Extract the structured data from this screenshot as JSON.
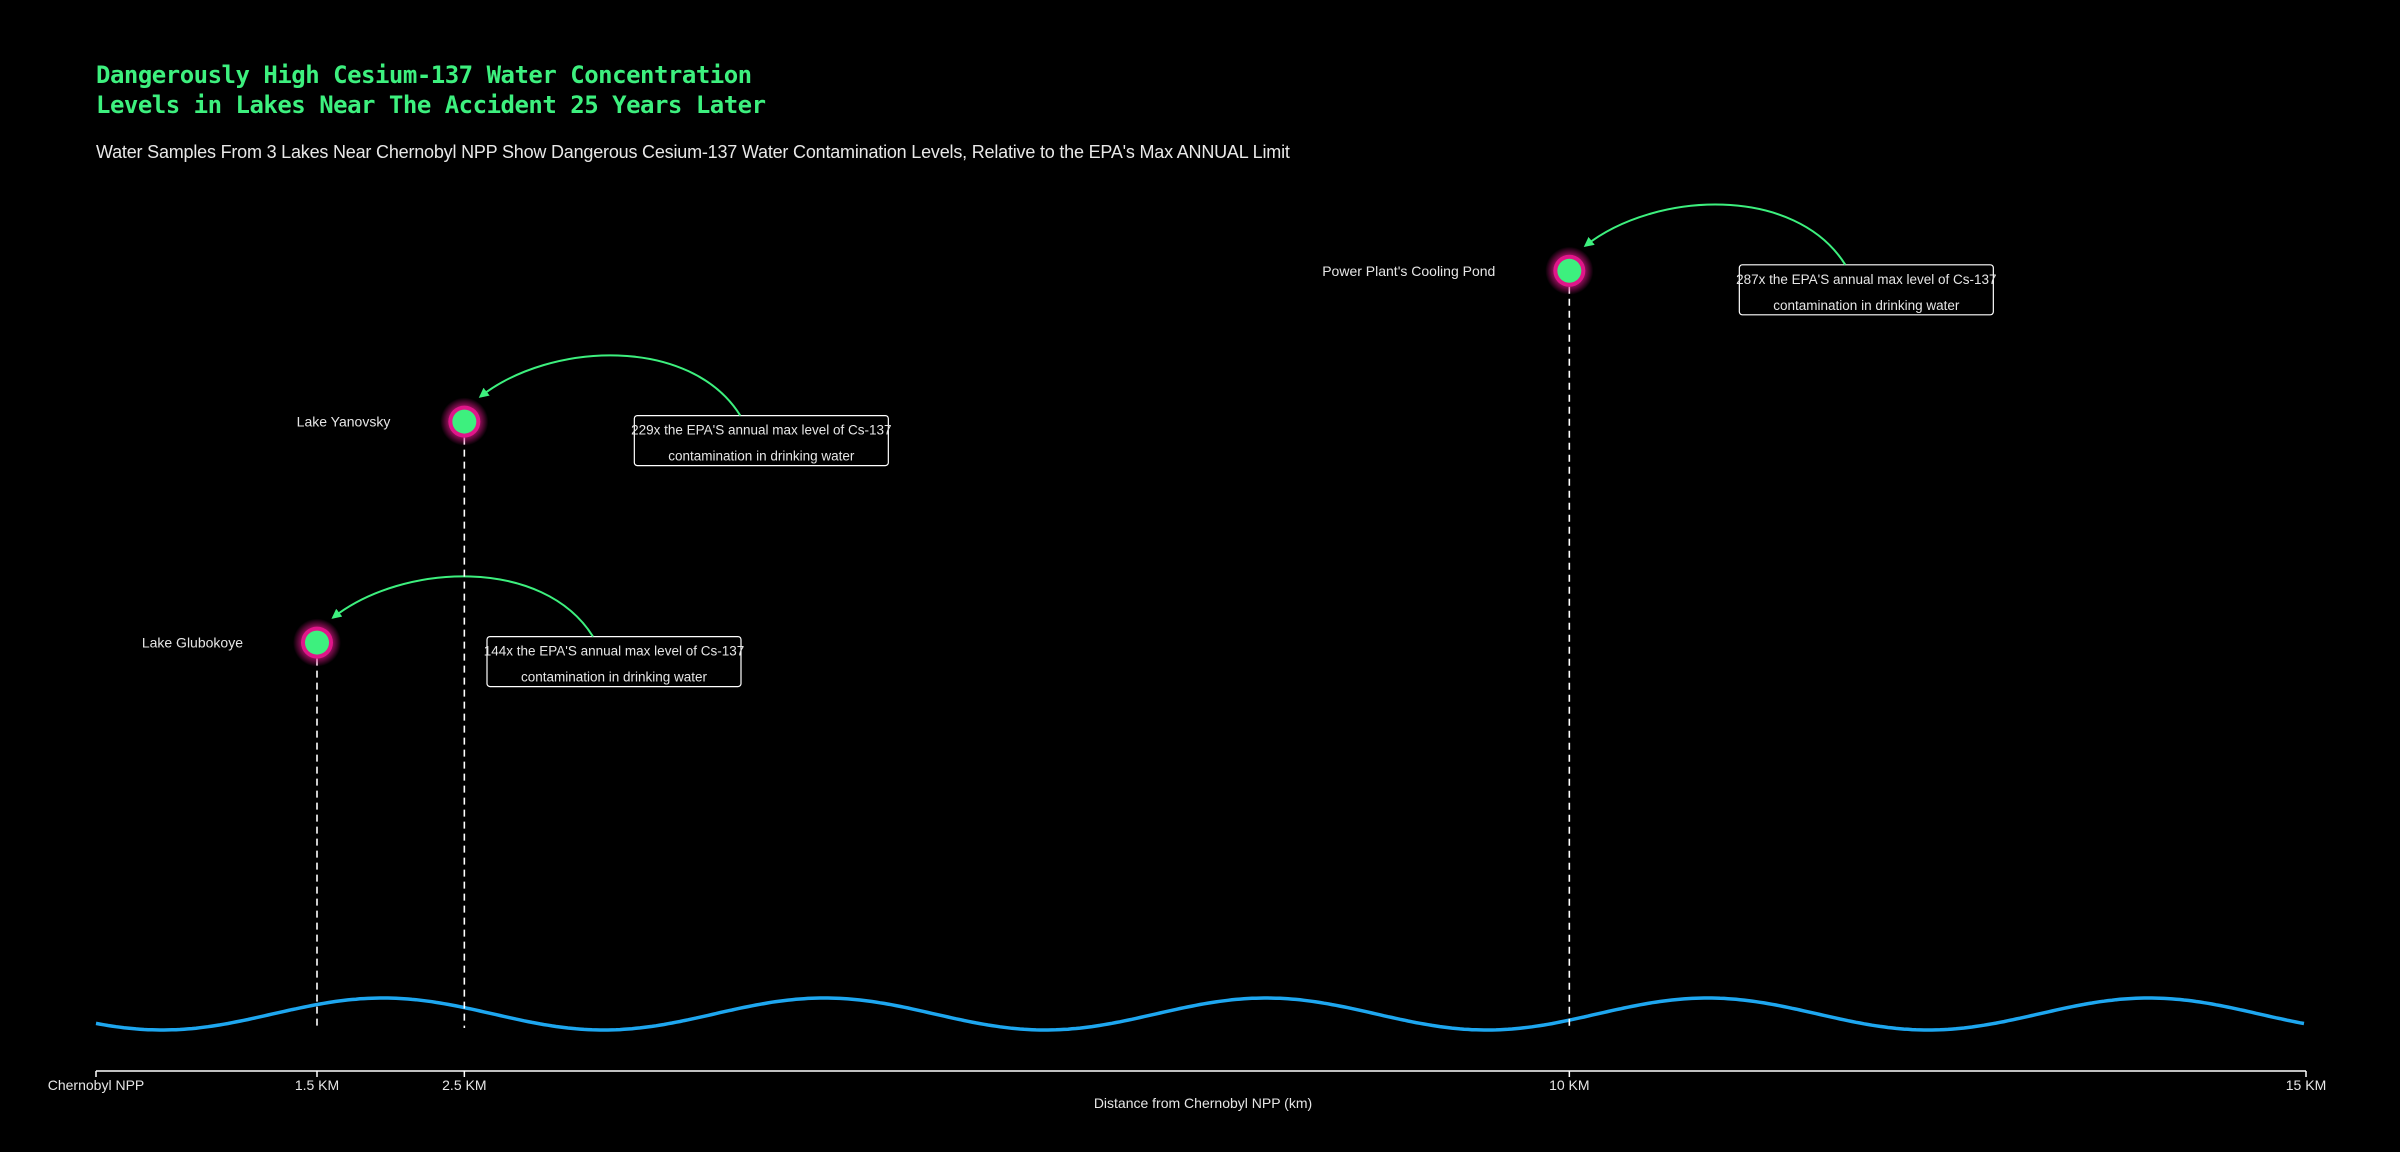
{
  "title_lines": [
    "Dangerously High Cesium-137 Water Concentration",
    "Levels in Lakes Near The Accident 25 Years Later"
  ],
  "subtitle": "Water Samples From 3 Lakes Near Chernobyl NPP Show Dangerous Cesium-137 Water Contamination Levels, Relative to the EPA's Max ANNUAL Limit",
  "colors": {
    "background": "#000000",
    "title": "#3df07e",
    "point_fill": "#3df07e",
    "point_glow": "#e0168a",
    "arrow": "#3df07e",
    "wave": "#1ea7f0",
    "axis": "#ffffff",
    "text": "#e6e6e6"
  },
  "chart_data": {
    "type": "scatter",
    "title": "Dangerously High Cesium-137 Water Concentration Levels in Lakes Near The Accident 25 Years Later",
    "subtitle": "Water Samples From 3 Lakes Near Chernobyl NPP Show Dangerous Cesium-137 Water Contamination Levels, Relative to the EPA's Max ANNUAL Limit",
    "xlabel": "Distance from Chernobyl NPP (km)",
    "ylabel": "",
    "xlim": [
      0,
      15
    ],
    "ylim": [
      0,
      300
    ],
    "grid": false,
    "x_ticks": [
      {
        "value": 0,
        "label": "Chernobyl NPP"
      },
      {
        "value": 1.5,
        "label": "1.5 KM"
      },
      {
        "value": 2.5,
        "label": "2.5 KM"
      },
      {
        "value": 10,
        "label": "10 KM"
      },
      {
        "value": 15,
        "label": "15 KM"
      }
    ],
    "points": [
      {
        "name": "Lake Glubokoye",
        "x": 1.5,
        "y": 144,
        "annotation": [
          "144x the EPA'S annual max level of Cs-137",
          "contamination in drinking water"
        ]
      },
      {
        "name": "Lake Yanovsky",
        "x": 2.5,
        "y": 229,
        "annotation": [
          "229x the EPA'S annual max level of Cs-137",
          "contamination in drinking water"
        ]
      },
      {
        "name": "Power Plant's Cooling Pond",
        "x": 10,
        "y": 287,
        "annotation": [
          "287x the EPA'S annual max level of Cs-137",
          "contamination in drinking water"
        ]
      }
    ]
  }
}
